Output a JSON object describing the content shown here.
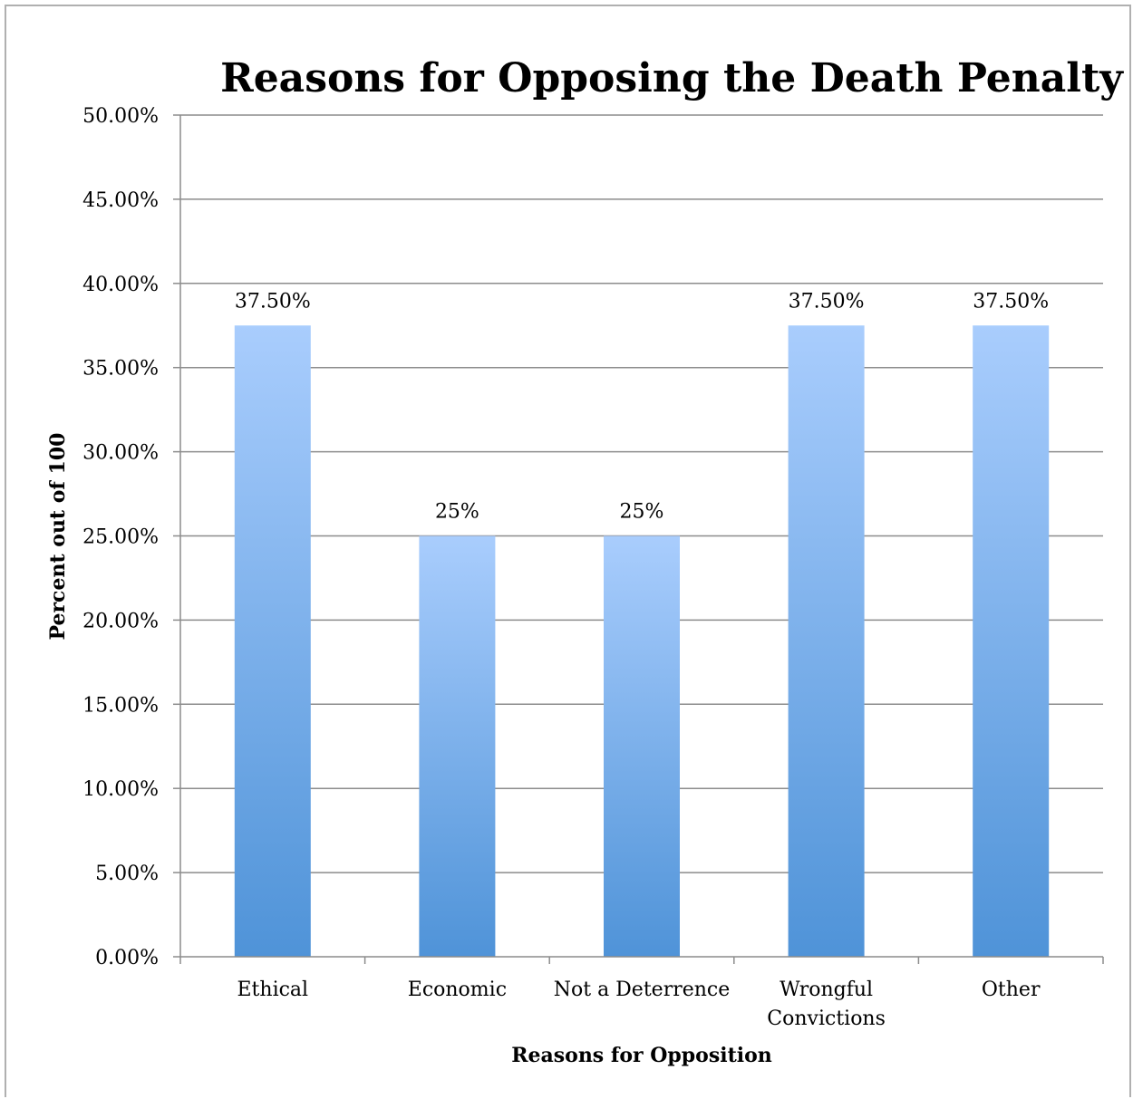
{
  "chart_data": {
    "type": "bar",
    "title": "Reasons for Opposing the Death Penalty",
    "xlabel": "Reasons for Opposition",
    "ylabel": "Percent out of 100",
    "categories": [
      [
        "Ethical"
      ],
      [
        "Economic"
      ],
      [
        "Not a Deterrence"
      ],
      [
        "Wrongful",
        "Convictions"
      ],
      [
        "Other"
      ]
    ],
    "values": [
      37.5,
      25,
      25,
      37.5,
      37.5
    ],
    "data_labels": [
      "37.50%",
      "25%",
      "25%",
      "37.50%",
      "37.50%"
    ],
    "ylim": [
      0,
      50
    ],
    "y_ticks": [
      "0.00%",
      "5.00%",
      "10.00%",
      "15.00%",
      "20.00%",
      "25.00%",
      "30.00%",
      "35.00%",
      "40.00%",
      "45.00%",
      "50.00%"
    ],
    "grid": true,
    "legend": "none",
    "colors": {
      "bar_top": "#a9cdfd",
      "bar_bottom": "#4f93d8",
      "grid": "#8c8c8c",
      "axis": "#8c8c8c"
    }
  }
}
